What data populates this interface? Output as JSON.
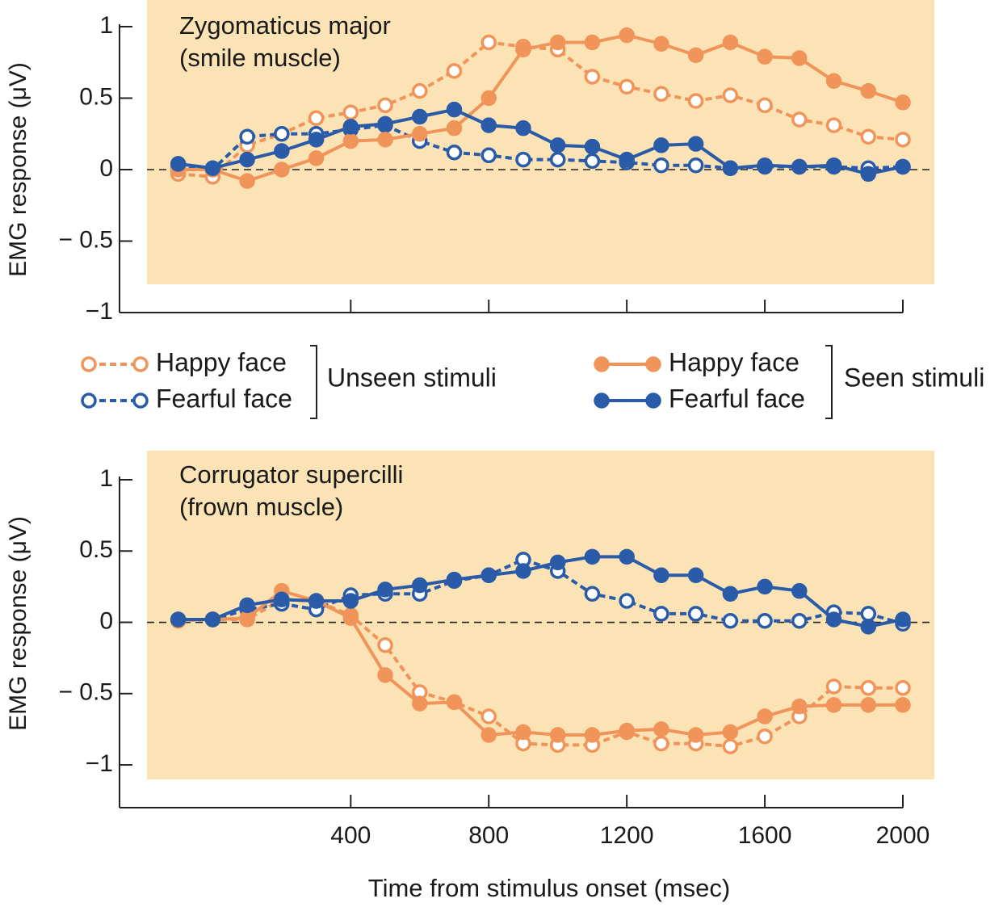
{
  "chart_data": [
    {
      "type": "line",
      "title_lines": [
        "Zygomaticus major",
        "(smile muscle)"
      ],
      "ylabel": "EMG response (μV)",
      "x": [
        -100,
        0,
        100,
        200,
        300,
        400,
        500,
        600,
        700,
        800,
        900,
        1000,
        1100,
        1200,
        1300,
        1400,
        1500,
        1600,
        1700,
        1800,
        1900,
        2000
      ],
      "xlim": [
        -270,
        2000
      ],
      "xticks": [
        400,
        800,
        1200,
        1600,
        2000
      ],
      "xtick_labels": false,
      "ylim": [
        -1,
        1
      ],
      "yticks": [
        1,
        0.5,
        0,
        {
          "value": -0.5,
          "label": "− 0.5"
        },
        {
          "value": -1,
          "label": "−1"
        }
      ],
      "reference_line": 0,
      "series": [
        {
          "name": "Happy face",
          "color": "#f0945a",
          "marker": "open",
          "dashed": true,
          "values": [
            -0.03,
            -0.05,
            0.17,
            0.25,
            0.36,
            0.4,
            0.45,
            0.55,
            0.69,
            0.89,
            0.86,
            0.84,
            0.65,
            0.58,
            0.53,
            0.48,
            0.52,
            0.45,
            0.35,
            0.31,
            0.23,
            0.21
          ]
        },
        {
          "name": "Fearful face",
          "color": "#2a5ba8",
          "marker": "open",
          "dashed": true,
          "values": [
            0.01,
            0,
            0.23,
            0.25,
            0.25,
            0.28,
            0.31,
            0.2,
            0.12,
            0.1,
            0.07,
            0.07,
            0.06,
            0.05,
            0.03,
            0.03,
            0.01,
            0.02,
            0.02,
            0.02,
            0.01,
            0.02
          ]
        },
        {
          "name": "Happy face",
          "color": "#f0945a",
          "marker": "filled",
          "dashed": false,
          "values": [
            0,
            0,
            -0.08,
            0,
            0.08,
            0.2,
            0.21,
            0.25,
            0.29,
            0.5,
            0.84,
            0.89,
            0.89,
            0.94,
            0.88,
            0.8,
            0.89,
            0.79,
            0.78,
            0.62,
            0.55,
            0.47
          ]
        },
        {
          "name": "Fearful face",
          "color": "#2a5ba8",
          "marker": "filled",
          "dashed": false,
          "values": [
            0.04,
            0.01,
            0.07,
            0.13,
            0.21,
            0.3,
            0.32,
            0.37,
            0.42,
            0.31,
            0.29,
            0.17,
            0.16,
            0.07,
            0.17,
            0.18,
            0.01,
            0.03,
            0.02,
            0.03,
            -0.03,
            0.02
          ]
        }
      ],
      "legend_groups": [
        {
          "label": "Unseen stimuli",
          "series": [
            0,
            1
          ]
        },
        {
          "label": "Seen stimuli",
          "series": [
            2,
            3
          ]
        }
      ]
    },
    {
      "type": "line",
      "title_lines": [
        "Corrugator supercilli",
        "(frown muscle)"
      ],
      "ylabel": "EMG response (μV)",
      "xlabel": "Time from stimulus onset (msec)",
      "x": [
        -100,
        0,
        100,
        200,
        300,
        400,
        500,
        600,
        700,
        800,
        900,
        1000,
        1100,
        1200,
        1300,
        1400,
        1500,
        1600,
        1700,
        1800,
        1900,
        2000
      ],
      "xlim": [
        -270,
        2000
      ],
      "xticks": [
        400,
        800,
        1200,
        1600,
        2000
      ],
      "xtick_labels": true,
      "ylim": [
        -1.3,
        1
      ],
      "yticks": [
        1,
        0.5,
        0,
        {
          "value": -0.5,
          "label": "− 0.5"
        },
        {
          "value": -1,
          "label": "−1"
        }
      ],
      "reference_line": 0,
      "series": [
        {
          "color": "#f0945a",
          "marker": "open",
          "dashed": true,
          "values": [
            0.01,
            0.02,
            0.02,
            0.16,
            0.15,
            0.05,
            -0.16,
            -0.49,
            -0.56,
            -0.66,
            -0.85,
            -0.86,
            -0.86,
            -0.77,
            -0.85,
            -0.85,
            -0.87,
            -0.8,
            -0.66,
            -0.45,
            -0.46,
            -0.46
          ]
        },
        {
          "color": "#2a5ba8",
          "marker": "open",
          "dashed": true,
          "values": [
            0.02,
            0.02,
            0.09,
            0.13,
            0.09,
            0.19,
            0.2,
            0.2,
            0.29,
            0.33,
            0.44,
            0.36,
            0.2,
            0.15,
            0.06,
            0.06,
            0.01,
            0.01,
            0.01,
            0.07,
            0.06,
            -0.01
          ]
        },
        {
          "color": "#f0945a",
          "marker": "filled",
          "dashed": false,
          "values": [
            0.02,
            0.02,
            0.03,
            0.22,
            0.15,
            0.03,
            -0.37,
            -0.57,
            -0.56,
            -0.79,
            -0.77,
            -0.79,
            -0.79,
            -0.76,
            -0.75,
            -0.79,
            -0.77,
            -0.66,
            -0.59,
            -0.58,
            -0.58,
            -0.58
          ]
        },
        {
          "color": "#2a5ba8",
          "marker": "filled",
          "dashed": false,
          "values": [
            0.02,
            0.02,
            0.12,
            0.16,
            0.15,
            0.15,
            0.23,
            0.26,
            0.3,
            0.33,
            0.36,
            0.42,
            0.46,
            0.46,
            0.33,
            0.33,
            0.2,
            0.25,
            0.22,
            0.02,
            -0.03,
            0.02
          ]
        }
      ]
    }
  ]
}
